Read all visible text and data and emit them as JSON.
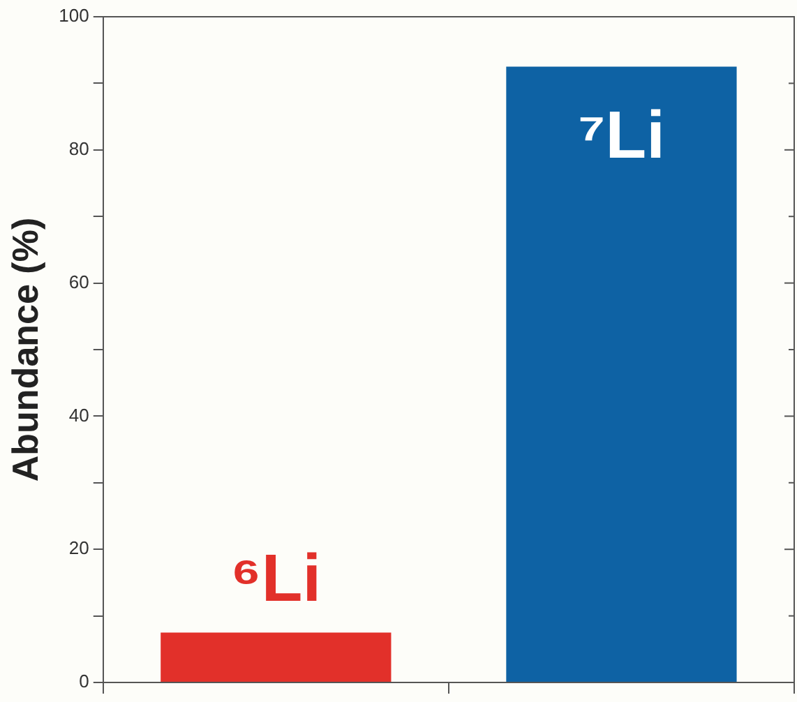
{
  "chart_data": {
    "type": "bar",
    "categories": [
      "⁶Li",
      "⁷Li"
    ],
    "values": [
      7.5,
      92.5
    ],
    "colors": [
      "#e2302a",
      "#0e62a4"
    ],
    "ylabel": "Abundance (%)",
    "ylim": [
      0,
      100
    ],
    "yticks": [
      0,
      {
        "value": 10,
        "label": null
      },
      20,
      {
        "value": 30,
        "label": null
      },
      40,
      {
        "value": 50,
        "label": null
      },
      60,
      {
        "value": 70,
        "label": null
      },
      80,
      {
        "value": 90,
        "label": null
      },
      100
    ],
    "tick_labels": "y",
    "grid": false,
    "legend": false
  }
}
